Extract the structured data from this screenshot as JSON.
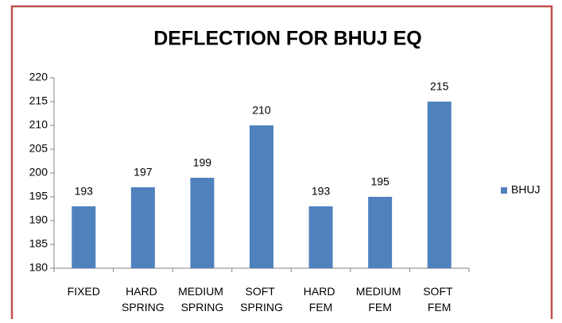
{
  "chart_data": {
    "type": "bar",
    "title": "DEFLECTION FOR BHUJ EQ",
    "categories": [
      "FIXED",
      "HARD SPRING",
      "MEDIUM SPRING",
      "SOFT SPRING",
      "HARD FEM",
      "MEDIUM FEM",
      "SOFT FEM"
    ],
    "series": [
      {
        "name": "BHUJ",
        "color": "#4f81bd",
        "values": [
          193,
          197,
          199,
          210,
          193,
          195,
          215
        ]
      }
    ],
    "ylim": [
      180,
      220
    ],
    "yticks": [
      180,
      185,
      190,
      195,
      200,
      205,
      210,
      215,
      220
    ],
    "grid": false,
    "legend": "right"
  }
}
